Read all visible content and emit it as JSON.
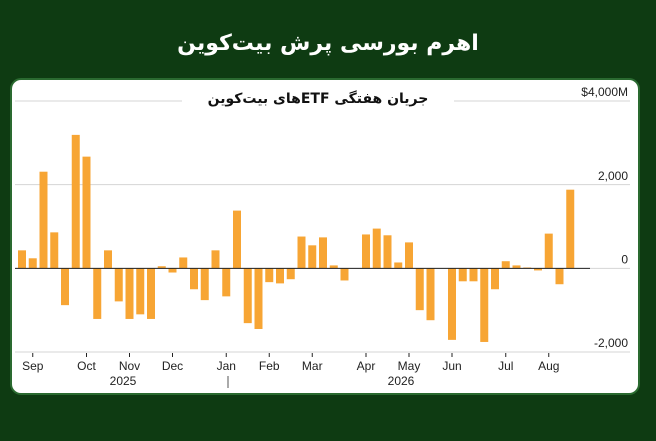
{
  "header": {
    "title": "اهرم بورسی پرش بیت‌کوین"
  },
  "chart_data": {
    "type": "bar",
    "title": "جریان هفتگی ETFهای بیت‌کوین",
    "color": "#f7a534",
    "grid": true,
    "categories": [
      null,
      null,
      null,
      null,
      null,
      null,
      null,
      null,
      null,
      null,
      null,
      null,
      null,
      null,
      null,
      null,
      null,
      null,
      null,
      null,
      null,
      null,
      null,
      null,
      null,
      null,
      null,
      null,
      null,
      null,
      null,
      null,
      null,
      null,
      null,
      null,
      null,
      null,
      null,
      null,
      null,
      null,
      null,
      null,
      null,
      null,
      null,
      null,
      null,
      null,
      null,
      null
    ],
    "values": [
      430,
      240,
      2310,
      860,
      -880,
      3190,
      2670,
      -1210,
      430,
      -790,
      -1210,
      -1100,
      -1210,
      50,
      -100,
      260,
      -500,
      -760,
      430,
      -670,
      1380,
      -1310,
      -1450,
      -330,
      -360,
      -260,
      760,
      550,
      740,
      70,
      -290,
      0,
      810,
      950,
      790,
      140,
      620,
      -1000,
      -1240,
      0,
      -1710,
      -310,
      -310,
      -1760,
      -500,
      170,
      70,
      20,
      -50,
      830,
      -380,
      1880
    ],
    "ylim": [
      -2000,
      4000
    ],
    "yticks": [
      {
        "value": 4000,
        "label": "$4,000M"
      },
      {
        "value": 2000,
        "label": "2,000"
      },
      0,
      {
        "value": -2000,
        "label": "-2,000"
      }
    ],
    "xticks": [
      {
        "value": 1,
        "label": "Sep"
      },
      {
        "value": 6,
        "label": "Oct"
      },
      {
        "value": 10,
        "label": "Nov"
      },
      {
        "value": 14,
        "label": "Dec"
      },
      {
        "value": 19,
        "label": "Jan"
      },
      {
        "value": 23,
        "label": "Feb"
      },
      {
        "value": 27,
        "label": "Mar"
      },
      {
        "value": 32,
        "label": "Apr"
      },
      {
        "value": 36,
        "label": "May"
      },
      {
        "value": 40,
        "label": "Jun"
      },
      {
        "value": 45,
        "label": "Jul"
      },
      {
        "value": 49,
        "label": "Aug"
      }
    ],
    "years": [
      "2025",
      "2026"
    ]
  }
}
